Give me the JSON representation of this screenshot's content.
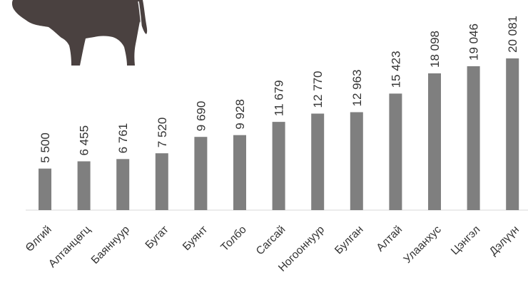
{
  "chart_data": {
    "type": "bar",
    "categories": [
      "Өлгий",
      "Алтанцөгц",
      "Баяннуур",
      "Бугат",
      "Буянт",
      "Толбо",
      "Сагсай",
      "Ногооннуур",
      "Булган",
      "Алтай",
      "Улаанхус",
      "Цэнгэл",
      "Дэлүүн"
    ],
    "values": [
      5500,
      6455,
      6761,
      7520,
      9690,
      9928,
      11679,
      12770,
      12963,
      15423,
      18098,
      19046,
      20081
    ],
    "value_labels": [
      "5 500",
      "6 455",
      "6 761",
      "7 520",
      "9 690",
      "9 928",
      "11 679",
      "12 770",
      "12 963",
      "15 423",
      "18 098",
      "19 046",
      "20 081"
    ],
    "ylim": [
      0,
      20081
    ],
    "grid": false,
    "legend": "none",
    "bar_color": "#7f7f7f",
    "decoration_icon": "cow-silhouette"
  }
}
